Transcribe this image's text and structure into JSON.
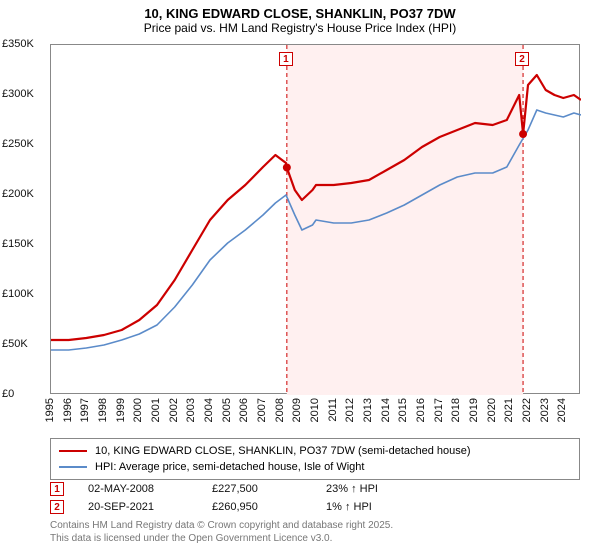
{
  "title_line1": "10, KING EDWARD CLOSE, SHANKLIN, PO37 7DW",
  "title_line2": "Price paid vs. HM Land Registry's House Price Index (HPI)",
  "chart": {
    "type": "line",
    "background_color": "#ffffff",
    "grid_color": "#dcdcdc",
    "shaded_region_color": "#fff0f0",
    "axis_color": "#888888",
    "xlim": [
      1995,
      2025
    ],
    "ylim": [
      0,
      350000
    ],
    "ytick_step": 50000,
    "ytick_labels": [
      "£0",
      "£50K",
      "£100K",
      "£150K",
      "£200K",
      "£250K",
      "£300K",
      "£350K"
    ],
    "xticks": [
      1995,
      1996,
      1997,
      1998,
      1999,
      2000,
      2001,
      2002,
      2003,
      2004,
      2005,
      2006,
      2007,
      2008,
      2009,
      2010,
      2011,
      2012,
      2013,
      2014,
      2015,
      2016,
      2017,
      2018,
      2019,
      2020,
      2021,
      2022,
      2023,
      2024
    ],
    "title_fontsize": 13,
    "subtitle_fontsize": 12,
    "tick_fontsize": 11,
    "line_width_main": 2.2,
    "line_width_hpi": 1.6,
    "series": [
      {
        "id": "price_paid",
        "label": "10, KING EDWARD CLOSE, SHANKLIN, PO37 7DW (semi-detached house)",
        "color": "#cc0000",
        "width": 2.2,
        "values": [
          [
            1995,
            55000
          ],
          [
            1996,
            55000
          ],
          [
            1997,
            57000
          ],
          [
            1998,
            60000
          ],
          [
            1999,
            65000
          ],
          [
            2000,
            75000
          ],
          [
            2001,
            90000
          ],
          [
            2002,
            115000
          ],
          [
            2003,
            145000
          ],
          [
            2004,
            175000
          ],
          [
            2005,
            195000
          ],
          [
            2006,
            210000
          ],
          [
            2007,
            228000
          ],
          [
            2007.7,
            240000
          ],
          [
            2008.3,
            232000
          ],
          [
            2008.35,
            227500
          ],
          [
            2008.8,
            205000
          ],
          [
            2009.2,
            195000
          ],
          [
            2009.8,
            205000
          ],
          [
            2010,
            210000
          ],
          [
            2011,
            210000
          ],
          [
            2012,
            212000
          ],
          [
            2013,
            215000
          ],
          [
            2014,
            225000
          ],
          [
            2015,
            235000
          ],
          [
            2016,
            248000
          ],
          [
            2017,
            258000
          ],
          [
            2018,
            265000
          ],
          [
            2019,
            272000
          ],
          [
            2020,
            270000
          ],
          [
            2020.8,
            275000
          ],
          [
            2021.5,
            300000
          ],
          [
            2021.72,
            260950
          ],
          [
            2022,
            310000
          ],
          [
            2022.5,
            320000
          ],
          [
            2023,
            305000
          ],
          [
            2023.5,
            300000
          ],
          [
            2024,
            297000
          ],
          [
            2024.6,
            300000
          ],
          [
            2025,
            295000
          ]
        ]
      },
      {
        "id": "hpi",
        "label": "HPI: Average price, semi-detached house, Isle of Wight",
        "color": "#5b8bc9",
        "width": 1.6,
        "values": [
          [
            1995,
            45000
          ],
          [
            1996,
            45000
          ],
          [
            1997,
            47000
          ],
          [
            1998,
            50000
          ],
          [
            1999,
            55000
          ],
          [
            2000,
            61000
          ],
          [
            2001,
            70000
          ],
          [
            2002,
            88000
          ],
          [
            2003,
            110000
          ],
          [
            2004,
            135000
          ],
          [
            2005,
            152000
          ],
          [
            2006,
            165000
          ],
          [
            2007,
            180000
          ],
          [
            2007.7,
            192000
          ],
          [
            2008.3,
            200000
          ],
          [
            2008.8,
            180000
          ],
          [
            2009.2,
            165000
          ],
          [
            2009.8,
            170000
          ],
          [
            2010,
            175000
          ],
          [
            2011,
            172000
          ],
          [
            2012,
            172000
          ],
          [
            2013,
            175000
          ],
          [
            2014,
            182000
          ],
          [
            2015,
            190000
          ],
          [
            2016,
            200000
          ],
          [
            2017,
            210000
          ],
          [
            2018,
            218000
          ],
          [
            2019,
            222000
          ],
          [
            2020,
            222000
          ],
          [
            2020.8,
            228000
          ],
          [
            2021.5,
            250000
          ],
          [
            2022,
            265000
          ],
          [
            2022.5,
            285000
          ],
          [
            2023,
            282000
          ],
          [
            2023.5,
            280000
          ],
          [
            2024,
            278000
          ],
          [
            2024.6,
            282000
          ],
          [
            2025,
            280000
          ]
        ]
      }
    ],
    "markers": [
      {
        "n": "1",
        "x": 2008.35,
        "y": 335000,
        "line_x": 2008.35
      },
      {
        "n": "2",
        "x": 2021.72,
        "y": 335000,
        "line_x": 2021.72
      }
    ],
    "shaded_xrange": [
      2008.35,
      2021.72
    ]
  },
  "legend": {
    "items": [
      {
        "color": "#cc0000",
        "label_key": "chart.series.0.label"
      },
      {
        "color": "#5b8bc9",
        "label_key": "chart.series.1.label"
      }
    ]
  },
  "points_table": [
    {
      "n": "1",
      "date": "02-MAY-2008",
      "price": "£227,500",
      "delta": "23% ↑ HPI"
    },
    {
      "n": "2",
      "date": "20-SEP-2021",
      "price": "£260,950",
      "delta": "1% ↑ HPI"
    }
  ],
  "footer_lines": [
    "Contains HM Land Registry data © Crown copyright and database right 2025.",
    "This data is licensed under the Open Government Licence v3.0."
  ]
}
